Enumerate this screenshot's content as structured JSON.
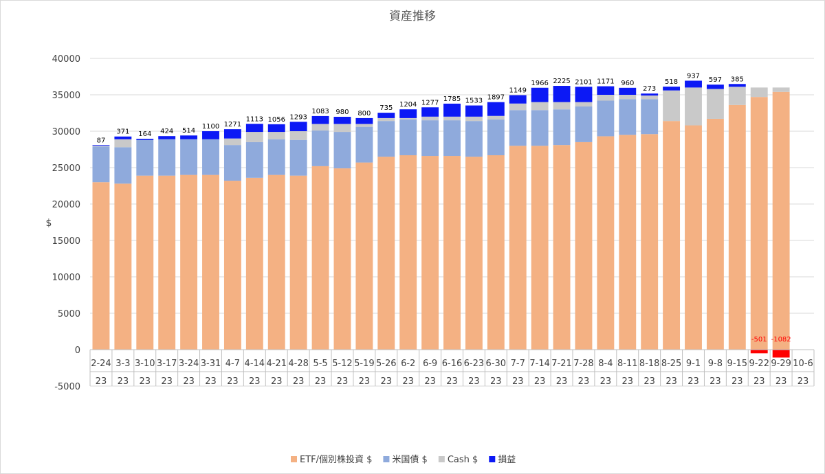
{
  "chart_data": {
    "type": "bar",
    "stacked": true,
    "title": "資産推移",
    "ylabel": "$",
    "xlabel": "",
    "ylim": [
      -5000,
      40000
    ],
    "yticks": [
      -5000,
      0,
      5000,
      10000,
      15000,
      20000,
      25000,
      30000,
      35000,
      40000
    ],
    "grid": true,
    "legend_position": "bottom",
    "category_row1": [
      "2-24",
      "3-3",
      "3-10",
      "3-17",
      "3-24",
      "3-31",
      "4-7",
      "4-14",
      "4-21",
      "4-28",
      "5-5",
      "5-12",
      "5-19",
      "5-26",
      "6-2",
      "6-9",
      "6-16",
      "6-23",
      "6-30",
      "7-7",
      "7-14",
      "7-21",
      "7-28",
      "8-4",
      "8-11",
      "8-18",
      "8-25",
      "9-1",
      "9-8",
      "9-15",
      "9-22",
      "9-29",
      "10-6"
    ],
    "category_row2": [
      "23",
      "23",
      "23",
      "23",
      "23",
      "23",
      "23",
      "23",
      "23",
      "23",
      "23",
      "23",
      "23",
      "23",
      "23",
      "23",
      "23",
      "23",
      "23",
      "23",
      "23",
      "23",
      "23",
      "23",
      "23",
      "23",
      "23",
      "23",
      "23",
      "23",
      "23",
      "23",
      "23"
    ],
    "series": [
      {
        "name": "ETF/個別株投資 $",
        "color": "#f4b183",
        "values": [
          23000,
          22800,
          23900,
          23900,
          24000,
          24000,
          23200,
          23600,
          24000,
          23900,
          25200,
          24900,
          25700,
          26500,
          26700,
          26600,
          26600,
          26500,
          26700,
          28000,
          28000,
          28100,
          28500,
          29300,
          29500,
          29600,
          31400,
          30800,
          31700,
          33600,
          34700,
          35400,
          null
        ]
      },
      {
        "name": "米国債 $",
        "color": "#8faadc",
        "values": [
          4900,
          5000,
          4900,
          5000,
          4900,
          4900,
          4900,
          4900,
          4900,
          4900,
          4900,
          5000,
          4900,
          4900,
          4900,
          4900,
          4900,
          4900,
          4900,
          4900,
          4900,
          4900,
          4900,
          4900,
          4900,
          4800,
          0,
          0,
          0,
          0,
          0,
          0,
          null
        ]
      },
      {
        "name": "Cash $",
        "color": "#c9c9c9",
        "values": [
          100,
          1100,
          0,
          0,
          0,
          0,
          900,
          1400,
          1000,
          1200,
          900,
          1100,
          400,
          400,
          200,
          500,
          500,
          600,
          500,
          900,
          1100,
          1000,
          600,
          800,
          600,
          500,
          4200,
          5200,
          4100,
          2500,
          1300,
          600,
          null
        ]
      },
      {
        "name": "損益",
        "color": "#0c19f5",
        "negative_color": "#ff0000",
        "values": [
          87,
          371,
          164,
          424,
          514,
          1100,
          1271,
          1113,
          1056,
          1293,
          1083,
          980,
          800,
          735,
          1204,
          1277,
          1785,
          1533,
          1897,
          1149,
          1966,
          2225,
          2101,
          1171,
          960,
          273,
          518,
          937,
          597,
          385,
          -501,
          -1082,
          null
        ]
      }
    ]
  }
}
